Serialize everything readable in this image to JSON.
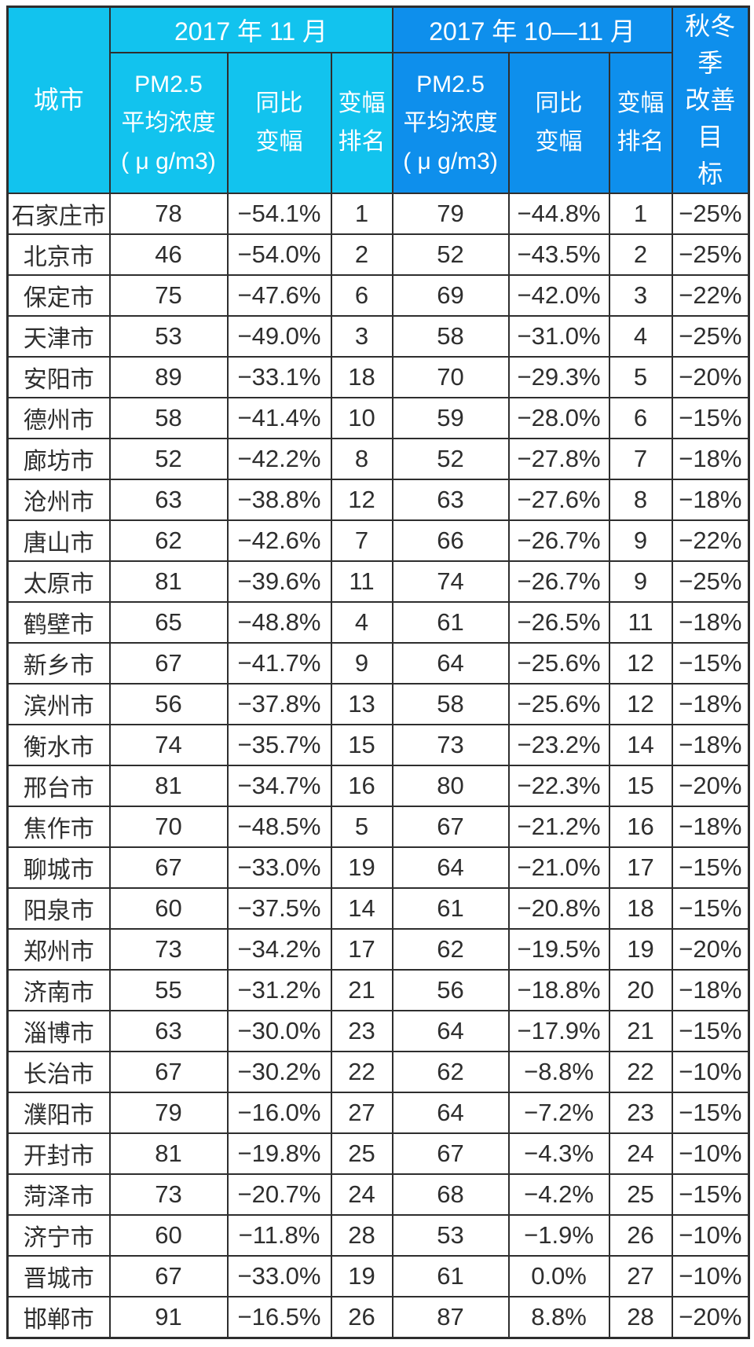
{
  "colors": {
    "header_cyan": "#12c3ee",
    "header_blue": "#0e8fec",
    "border": "#2e2e2e",
    "header_text": "#ffffff",
    "body_text": "#2e2e2e"
  },
  "header": {
    "city": "城市",
    "group_nov": "2017 年 11 月",
    "group_octnov": "2017 年 10—11 月",
    "pm25_concentration": "PM2.5\n平均浓度\n( μ g/m3)",
    "yoy_change": "同比\n变幅",
    "change_rank": "变幅\n排名",
    "autumn_winter_target": "秋冬季\n改善目\n标"
  },
  "chart_data": {
    "type": "table",
    "title": "2017年11月及2017年10—11月城市PM2.5平均浓度、同比变幅、变幅排名与秋冬季改善目标",
    "column_groups": [
      "城市",
      "2017 年 11 月",
      "2017 年 10—11 月",
      "秋冬季改善目标"
    ],
    "columns": [
      "城市",
      "2017年11月 PM2.5平均浓度(μg/m3)",
      "2017年11月 同比变幅",
      "2017年11月 变幅排名",
      "2017年10—11月 PM2.5平均浓度(μg/m3)",
      "2017年10—11月 同比变幅",
      "2017年10—11月 变幅排名",
      "秋冬季改善目标"
    ],
    "rows": [
      [
        "石家庄市",
        "78",
        "−54.1%",
        "1",
        "79",
        "−44.8%",
        "1",
        "−25%"
      ],
      [
        "北京市",
        "46",
        "−54.0%",
        "2",
        "52",
        "−43.5%",
        "2",
        "−25%"
      ],
      [
        "保定市",
        "75",
        "−47.6%",
        "6",
        "69",
        "−42.0%",
        "3",
        "−22%"
      ],
      [
        "天津市",
        "53",
        "−49.0%",
        "3",
        "58",
        "−31.0%",
        "4",
        "−25%"
      ],
      [
        "安阳市",
        "89",
        "−33.1%",
        "18",
        "70",
        "−29.3%",
        "5",
        "−20%"
      ],
      [
        "德州市",
        "58",
        "−41.4%",
        "10",
        "59",
        "−28.0%",
        "6",
        "−15%"
      ],
      [
        "廊坊市",
        "52",
        "−42.2%",
        "8",
        "52",
        "−27.8%",
        "7",
        "−18%"
      ],
      [
        "沧州市",
        "63",
        "−38.8%",
        "12",
        "63",
        "−27.6%",
        "8",
        "−18%"
      ],
      [
        "唐山市",
        "62",
        "−42.6%",
        "7",
        "66",
        "−26.7%",
        "9",
        "−22%"
      ],
      [
        "太原市",
        "81",
        "−39.6%",
        "11",
        "74",
        "−26.7%",
        "9",
        "−25%"
      ],
      [
        "鹤壁市",
        "65",
        "−48.8%",
        "4",
        "61",
        "−26.5%",
        "11",
        "−18%"
      ],
      [
        "新乡市",
        "67",
        "−41.7%",
        "9",
        "64",
        "−25.6%",
        "12",
        "−15%"
      ],
      [
        "滨州市",
        "56",
        "−37.8%",
        "13",
        "58",
        "−25.6%",
        "12",
        "−18%"
      ],
      [
        "衡水市",
        "74",
        "−35.7%",
        "15",
        "73",
        "−23.2%",
        "14",
        "−18%"
      ],
      [
        "邢台市",
        "81",
        "−34.7%",
        "16",
        "80",
        "−22.3%",
        "15",
        "−20%"
      ],
      [
        "焦作市",
        "70",
        "−48.5%",
        "5",
        "67",
        "−21.2%",
        "16",
        "−18%"
      ],
      [
        "聊城市",
        "67",
        "−33.0%",
        "19",
        "64",
        "−21.0%",
        "17",
        "−15%"
      ],
      [
        "阳泉市",
        "60",
        "−37.5%",
        "14",
        "61",
        "−20.8%",
        "18",
        "−15%"
      ],
      [
        "郑州市",
        "73",
        "−34.2%",
        "17",
        "62",
        "−19.5%",
        "19",
        "−20%"
      ],
      [
        "济南市",
        "55",
        "−31.2%",
        "21",
        "56",
        "−18.8%",
        "20",
        "−18%"
      ],
      [
        "淄博市",
        "63",
        "−30.0%",
        "23",
        "64",
        "−17.9%",
        "21",
        "−15%"
      ],
      [
        "长治市",
        "67",
        "−30.2%",
        "22",
        "62",
        "−8.8%",
        "22",
        "−10%"
      ],
      [
        "濮阳市",
        "79",
        "−16.0%",
        "27",
        "64",
        "−7.2%",
        "23",
        "−15%"
      ],
      [
        "开封市",
        "81",
        "−19.8%",
        "25",
        "67",
        "−4.3%",
        "24",
        "−10%"
      ],
      [
        "菏泽市",
        "73",
        "−20.7%",
        "24",
        "68",
        "−4.2%",
        "25",
        "−15%"
      ],
      [
        "济宁市",
        "60",
        "−11.8%",
        "28",
        "53",
        "−1.9%",
        "26",
        "−10%"
      ],
      [
        "晋城市",
        "67",
        "−33.0%",
        "19",
        "61",
        "0.0%",
        "27",
        "−10%"
      ],
      [
        "邯郸市",
        "91",
        "−16.5%",
        "26",
        "87",
        "8.8%",
        "28",
        "−20%"
      ]
    ]
  }
}
